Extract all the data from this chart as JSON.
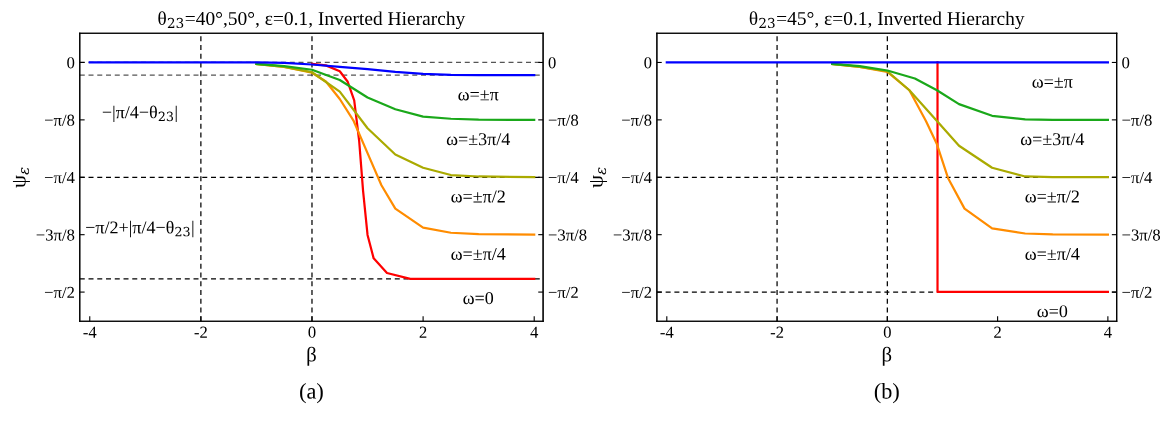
{
  "chart_data": [
    {
      "type": "line",
      "title": "θ$_{23}$=40°,50°, ε=0.1, Inverted Hierarchy",
      "xlabel": "β",
      "ylabel": "ψ$_{ε}$",
      "xlim": [
        -4.18,
        4.16
      ],
      "xticks": [
        -4,
        -2,
        0,
        2,
        4
      ],
      "ylim": [
        -1.77,
        0.2
      ],
      "yticks": [
        0,
        {
          "value": -0.3927,
          "label": "−π/8"
        },
        {
          "value": -0.7854,
          "label": "−π/4"
        },
        {
          "value": -1.1781,
          "label": "−3π/8"
        },
        {
          "value": -1.5708,
          "label": "−π/2"
        }
      ],
      "y2lim": [
        -1.77,
        0.2
      ],
      "y2ticks": [
        0,
        {
          "value": -0.3927,
          "label": "−π/8"
        },
        {
          "value": -0.7854,
          "label": "−π/4"
        },
        {
          "value": -1.1781,
          "label": "−3π/8"
        },
        {
          "value": -1.5708,
          "label": "−π/2"
        }
      ],
      "line_style": "solid",
      "series": [
        {
          "name": "ω=±π",
          "color": "#0000ff",
          "x": [
            -4,
            -1,
            -0.5,
            0,
            0.5,
            1,
            1.5,
            2,
            2.5,
            3,
            4
          ],
          "values": [
            0,
            0,
            -0.003,
            -0.014,
            -0.03,
            -0.045,
            -0.065,
            -0.078,
            -0.085,
            -0.087,
            -0.087
          ]
        },
        {
          "name": "ω=±3π/4",
          "color": "#1aa81a",
          "x": [
            -1,
            -0.5,
            0,
            0.5,
            1,
            1.5,
            2,
            2.5,
            3,
            4
          ],
          "values": [
            -0.01,
            -0.025,
            -0.05,
            -0.12,
            -0.24,
            -0.32,
            -0.37,
            -0.385,
            -0.391,
            -0.393
          ]
        },
        {
          "name": "ω=±π/2",
          "color": "#aaaa00",
          "x": [
            -1,
            -0.5,
            0,
            0.5,
            1,
            1.5,
            2,
            2.5,
            3,
            4
          ],
          "values": [
            -0.01,
            -0.03,
            -0.067,
            -0.2,
            -0.45,
            -0.63,
            -0.72,
            -0.77,
            -0.78,
            -0.785
          ]
        },
        {
          "name": "ω=±π/4",
          "color": "#ff8c00",
          "x": [
            -1,
            -0.5,
            0,
            0.25,
            0.5,
            0.75,
            1,
            1.25,
            1.5,
            2,
            2.5,
            3,
            4
          ],
          "values": [
            -0.01,
            -0.03,
            -0.07,
            -0.13,
            -0.25,
            -0.4,
            -0.62,
            -0.84,
            -1.0,
            -1.13,
            -1.165,
            -1.175,
            -1.178
          ]
        },
        {
          "name": "ω=0",
          "color": "#ff0000",
          "x": [
            0,
            0.25,
            0.5,
            0.64,
            0.76,
            0.85,
            0.92,
            1.0,
            1.11,
            1.35,
            1.77,
            2.5,
            4
          ],
          "values": [
            -0.01,
            -0.02,
            -0.06,
            -0.13,
            -0.26,
            -0.54,
            -0.88,
            -1.18,
            -1.34,
            -1.44,
            -1.48,
            -1.48,
            -1.48
          ]
        }
      ],
      "ref_lines": [
        {
          "axis": "x",
          "value": -2,
          "line_style": "dashed",
          "color": "#000000"
        },
        {
          "axis": "x",
          "value": 0,
          "line_style": "dashed",
          "color": "#000000"
        },
        {
          "axis": "y",
          "value": 0,
          "line_style": "dashed",
          "color": "#555555"
        },
        {
          "axis": "y",
          "value": -0.087,
          "line_style": "dashed",
          "color": "#555555"
        },
        {
          "axis": "y",
          "value": -0.7854,
          "line_style": "dashed",
          "color": "#000000"
        },
        {
          "axis": "y",
          "value": -1.48,
          "line_style": "dashed",
          "color": "#000000"
        }
      ],
      "annotations": [
        "−|π/4−θ$_{23}$|",
        "−π/2+|π/4−θ$_{23}$|",
        "(a)"
      ]
    },
    {
      "type": "line",
      "title": "θ$_{23}$=45°, ε=0.1, Inverted Hierarchy",
      "xlabel": "β",
      "ylabel": "ψ$_{ε}$",
      "xlim": [
        -4.18,
        4.16
      ],
      "xticks": [
        -4,
        -2,
        0,
        2,
        4
      ],
      "ylim": [
        -1.77,
        0.2
      ],
      "yticks": [
        0,
        {
          "value": -0.3927,
          "label": "−π/8"
        },
        {
          "value": -0.7854,
          "label": "−π/4"
        },
        {
          "value": -1.1781,
          "label": "−3π/8"
        },
        {
          "value": -1.5708,
          "label": "−π/2"
        }
      ],
      "y2lim": [
        -1.77,
        0.2
      ],
      "y2ticks": [
        0,
        {
          "value": -0.3927,
          "label": "−π/8"
        },
        {
          "value": -0.7854,
          "label": "−π/4"
        },
        {
          "value": -1.1781,
          "label": "−3π/8"
        },
        {
          "value": -1.5708,
          "label": "−π/2"
        }
      ],
      "line_style": "solid",
      "series": [
        {
          "name": "ω=±π",
          "color": "#0000ff",
          "x": [
            -4,
            4
          ],
          "values": [
            0,
            0
          ]
        },
        {
          "name": "ω=±3π/4",
          "color": "#1aa81a",
          "x": [
            -1,
            -0.5,
            0,
            0.5,
            0.9,
            1.3,
            1.9,
            2.5,
            3,
            4
          ],
          "values": [
            -0.01,
            -0.025,
            -0.055,
            -0.11,
            -0.19,
            -0.285,
            -0.365,
            -0.39,
            -0.392,
            -0.393
          ]
        },
        {
          "name": "ω=±π/2",
          "color": "#aaaa00",
          "x": [
            -1,
            -0.5,
            0,
            0.4,
            0.9,
            1.3,
            1.9,
            2.5,
            3,
            4
          ],
          "values": [
            -0.01,
            -0.03,
            -0.06,
            -0.19,
            -0.4,
            -0.57,
            -0.72,
            -0.78,
            -0.784,
            -0.785
          ]
        },
        {
          "name": "ω=±π/4",
          "color": "#ff8c00",
          "x": [
            -1,
            -0.5,
            0,
            0.4,
            0.7,
            0.9,
            1.1,
            1.4,
            1.9,
            2.5,
            3,
            4
          ],
          "values": [
            -0.01,
            -0.03,
            -0.065,
            -0.19,
            -0.4,
            -0.56,
            -0.79,
            -1.0,
            -1.135,
            -1.17,
            -1.176,
            -1.178
          ]
        },
        {
          "name": "ω=0",
          "color": "#ff0000",
          "x": [
            0.91,
            0.91,
            4
          ],
          "values": [
            0,
            -1.57,
            -1.57
          ]
        }
      ],
      "ref_lines": [
        {
          "axis": "x",
          "value": -2,
          "line_style": "dashed",
          "color": "#000000"
        },
        {
          "axis": "x",
          "value": 0,
          "line_style": "dashed",
          "color": "#000000"
        },
        {
          "axis": "y",
          "value": -0.7854,
          "line_style": "dashed",
          "color": "#000000"
        },
        {
          "axis": "y",
          "value": -1.5708,
          "line_style": "dashed",
          "color": "#000000"
        }
      ],
      "annotations": [
        "(b)"
      ]
    }
  ]
}
